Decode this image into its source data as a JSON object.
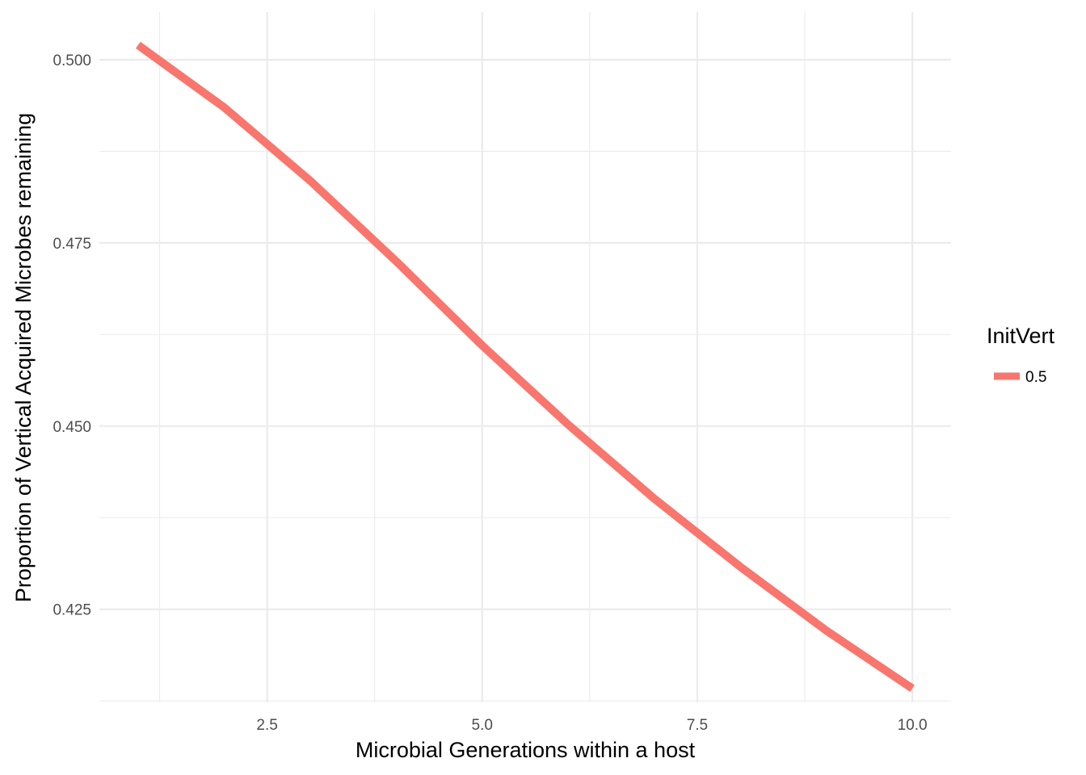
{
  "chart_data": {
    "type": "line",
    "xlabel": "Microbial Generations within a host",
    "ylabel": "Proportion of Vertical Acquired Microbes remaining",
    "xlim": [
      0.55,
      10.45
    ],
    "ylim": [
      0.4123,
      0.5065
    ],
    "x_ticks": [
      2.5,
      5.0,
      7.5,
      10.0
    ],
    "x_tick_labels": [
      "2.5",
      "5.0",
      "7.5",
      "10.0"
    ],
    "x_minor_ticks": [
      1.25,
      3.75,
      6.25,
      8.75
    ],
    "y_ticks": [
      0.425,
      0.45,
      0.475,
      0.5
    ],
    "y_tick_labels": [
      "0.425",
      "0.450",
      "0.475",
      "0.500"
    ],
    "y_minor_ticks": [
      0.4125,
      0.4375,
      0.4625,
      0.4875
    ],
    "grid": true,
    "legend": {
      "title": "InitVert",
      "placement": "right"
    },
    "series": [
      {
        "name": "0.5",
        "color": "#F8766D",
        "x": [
          1,
          2,
          3,
          4,
          5,
          6,
          7,
          8,
          9,
          10
        ],
        "values": [
          0.502,
          0.4935,
          0.4835,
          0.4725,
          0.461,
          0.4502,
          0.4401,
          0.4308,
          0.4221,
          0.4142
        ]
      }
    ]
  }
}
